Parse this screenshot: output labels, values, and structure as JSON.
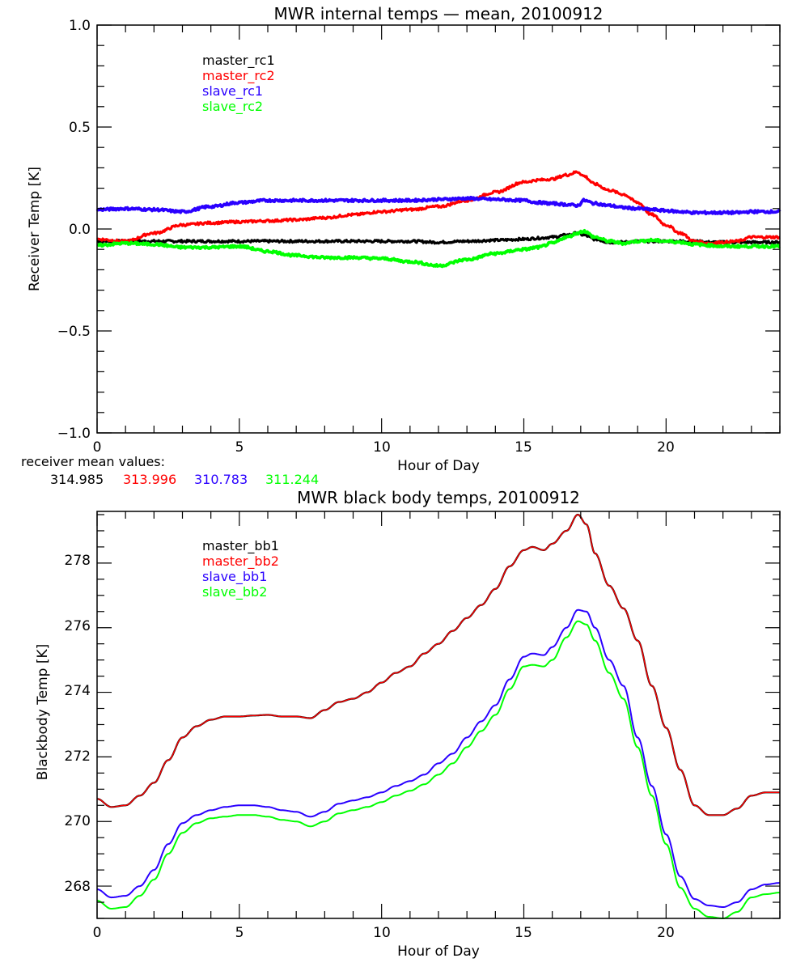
{
  "chart_data": [
    {
      "type": "line",
      "title": "MWR internal temps — mean, 20100912",
      "xlabel": "Hour of Day",
      "ylabel": "Receiver Temp [K]",
      "xlim": [
        0,
        24
      ],
      "ylim": [
        -1.0,
        1.0
      ],
      "xticks": [
        0,
        5,
        10,
        15,
        20
      ],
      "xtick_labels": [
        "0",
        "5",
        "10",
        "15",
        "20"
      ],
      "yticks": [
        -1.0,
        -0.5,
        0.0,
        0.5,
        1.0
      ],
      "ytick_labels": [
        "−1.0",
        "−0.5",
        "0.0",
        "0.5",
        "1.0"
      ],
      "legend_position": "upper-left-inside",
      "grid": false,
      "x": [
        0,
        1,
        2,
        3,
        4,
        5,
        6,
        7,
        8,
        9,
        10,
        11,
        12,
        13,
        14,
        15,
        15.5,
        16,
        16.5,
        16.9,
        17.1,
        17.5,
        18,
        18.5,
        19,
        19.5,
        20,
        20.5,
        21,
        21.5,
        22,
        22.5,
        23,
        23.5,
        24
      ],
      "series": [
        {
          "name": "master_rc1",
          "color": "#000000",
          "values": [
            -0.06,
            -0.06,
            -0.06,
            -0.06,
            -0.06,
            -0.06,
            -0.06,
            -0.06,
            -0.06,
            -0.06,
            -0.06,
            -0.06,
            -0.065,
            -0.06,
            -0.055,
            -0.05,
            -0.045,
            -0.04,
            -0.03,
            -0.02,
            -0.03,
            -0.05,
            -0.065,
            -0.065,
            -0.06,
            -0.06,
            -0.06,
            -0.06,
            -0.06,
            -0.065,
            -0.065,
            -0.065,
            -0.065,
            -0.065,
            -0.065
          ]
        },
        {
          "name": "master_rc2",
          "color": "#ff0000",
          "values": [
            -0.05,
            -0.06,
            -0.02,
            0.02,
            0.03,
            0.035,
            0.04,
            0.045,
            0.055,
            0.07,
            0.085,
            0.095,
            0.11,
            0.14,
            0.18,
            0.23,
            0.24,
            0.245,
            0.265,
            0.28,
            0.26,
            0.22,
            0.19,
            0.17,
            0.13,
            0.07,
            0.02,
            -0.02,
            -0.06,
            -0.07,
            -0.065,
            -0.06,
            -0.04,
            -0.04,
            -0.04
          ]
        },
        {
          "name": "slave_rc1",
          "color": "#2a00ff",
          "values": [
            0.095,
            0.1,
            0.095,
            0.085,
            0.11,
            0.13,
            0.14,
            0.14,
            0.14,
            0.14,
            0.14,
            0.14,
            0.145,
            0.15,
            0.145,
            0.14,
            0.13,
            0.125,
            0.12,
            0.115,
            0.14,
            0.125,
            0.115,
            0.105,
            0.1,
            0.095,
            0.09,
            0.085,
            0.08,
            0.08,
            0.08,
            0.08,
            0.085,
            0.085,
            0.085
          ]
        },
        {
          "name": "slave_rc2",
          "color": "#00ff00",
          "values": [
            -0.08,
            -0.07,
            -0.075,
            -0.09,
            -0.09,
            -0.085,
            -0.11,
            -0.13,
            -0.14,
            -0.14,
            -0.145,
            -0.16,
            -0.18,
            -0.15,
            -0.12,
            -0.1,
            -0.09,
            -0.07,
            -0.04,
            -0.02,
            -0.01,
            -0.04,
            -0.06,
            -0.07,
            -0.06,
            -0.055,
            -0.06,
            -0.065,
            -0.075,
            -0.08,
            -0.085,
            -0.085,
            -0.085,
            -0.085,
            -0.085
          ]
        }
      ],
      "annotation": {
        "label": "receiver mean values:",
        "values": [
          {
            "text": "314.985",
            "color": "#000000"
          },
          {
            "text": "313.996",
            "color": "#ff0000"
          },
          {
            "text": "310.783",
            "color": "#2a00ff"
          },
          {
            "text": "311.244",
            "color": "#00ff00"
          }
        ]
      }
    },
    {
      "type": "line",
      "title": "MWR black body temps, 20100912",
      "xlabel": "Hour of Day",
      "ylabel": "Blackbody Temp [K]",
      "xlim": [
        0,
        24
      ],
      "ylim": [
        267.0,
        279.6
      ],
      "xticks": [
        0,
        5,
        10,
        15,
        20
      ],
      "xtick_labels": [
        "0",
        "5",
        "10",
        "15",
        "20"
      ],
      "yticks": [
        268,
        270,
        272,
        274,
        276,
        278
      ],
      "ytick_labels": [
        "268",
        "270",
        "272",
        "274",
        "276",
        "278"
      ],
      "legend_position": "upper-left-inside",
      "grid": false,
      "x": [
        0,
        0.5,
        1,
        1.5,
        2,
        2.5,
        3,
        3.5,
        4,
        4.5,
        5,
        5.5,
        6,
        6.5,
        7,
        7.5,
        8,
        8.5,
        9,
        9.5,
        10,
        10.5,
        11,
        11.5,
        12,
        12.5,
        13,
        13.5,
        14,
        14.5,
        15,
        15.3,
        15.7,
        16,
        16.5,
        16.9,
        17.2,
        17.5,
        18,
        18.5,
        19,
        19.5,
        20,
        20.5,
        21,
        21.5,
        22,
        22.5,
        23,
        23.5,
        24
      ],
      "series": [
        {
          "name": "master_bb1",
          "color": "#000000",
          "values": [
            270.7,
            270.45,
            270.5,
            270.8,
            271.2,
            271.9,
            272.6,
            272.95,
            273.15,
            273.25,
            273.25,
            273.28,
            273.3,
            273.25,
            273.25,
            273.2,
            273.45,
            273.7,
            273.8,
            274.0,
            274.3,
            274.6,
            274.8,
            275.2,
            275.5,
            275.9,
            276.3,
            276.7,
            277.2,
            277.9,
            278.4,
            278.5,
            278.4,
            278.6,
            279.0,
            279.5,
            279.2,
            278.3,
            277.3,
            276.6,
            275.6,
            274.2,
            272.9,
            271.6,
            270.5,
            270.2,
            270.2,
            270.4,
            270.8,
            270.9,
            270.9
          ]
        },
        {
          "name": "master_bb2",
          "color": "#ff0000",
          "values": [
            270.7,
            270.45,
            270.5,
            270.8,
            271.2,
            271.9,
            272.6,
            272.95,
            273.15,
            273.25,
            273.25,
            273.28,
            273.3,
            273.25,
            273.25,
            273.2,
            273.45,
            273.7,
            273.8,
            274.0,
            274.3,
            274.6,
            274.8,
            275.2,
            275.5,
            275.9,
            276.3,
            276.7,
            277.2,
            277.9,
            278.4,
            278.5,
            278.4,
            278.6,
            279.0,
            279.5,
            279.2,
            278.3,
            277.3,
            276.6,
            275.6,
            274.2,
            272.9,
            271.6,
            270.5,
            270.2,
            270.2,
            270.4,
            270.8,
            270.9,
            270.9
          ]
        },
        {
          "name": "slave_bb1",
          "color": "#2a00ff",
          "values": [
            267.9,
            267.65,
            267.7,
            268.0,
            268.5,
            269.3,
            269.95,
            270.2,
            270.35,
            270.45,
            270.5,
            270.5,
            270.45,
            270.35,
            270.3,
            270.15,
            270.3,
            270.55,
            270.65,
            270.75,
            270.9,
            271.1,
            271.25,
            271.45,
            271.8,
            272.1,
            272.6,
            273.1,
            273.6,
            274.4,
            275.1,
            275.2,
            275.15,
            275.4,
            276.0,
            276.55,
            276.5,
            276.0,
            275.0,
            274.2,
            272.6,
            271.1,
            269.6,
            268.3,
            267.6,
            267.4,
            267.35,
            267.5,
            267.9,
            268.05,
            268.1
          ]
        },
        {
          "name": "slave_bb2",
          "color": "#00ff00",
          "values": [
            267.55,
            267.3,
            267.35,
            267.7,
            268.2,
            269.0,
            269.65,
            269.95,
            270.1,
            270.15,
            270.2,
            270.2,
            270.15,
            270.05,
            270.0,
            269.85,
            270.0,
            270.25,
            270.35,
            270.45,
            270.6,
            270.8,
            270.95,
            271.15,
            271.45,
            271.8,
            272.3,
            272.8,
            273.3,
            274.1,
            274.8,
            274.85,
            274.8,
            275.0,
            275.7,
            276.2,
            276.1,
            275.6,
            274.6,
            273.8,
            272.3,
            270.8,
            269.3,
            267.95,
            267.3,
            267.05,
            267.0,
            267.2,
            267.65,
            267.75,
            267.8
          ]
        }
      ]
    }
  ]
}
